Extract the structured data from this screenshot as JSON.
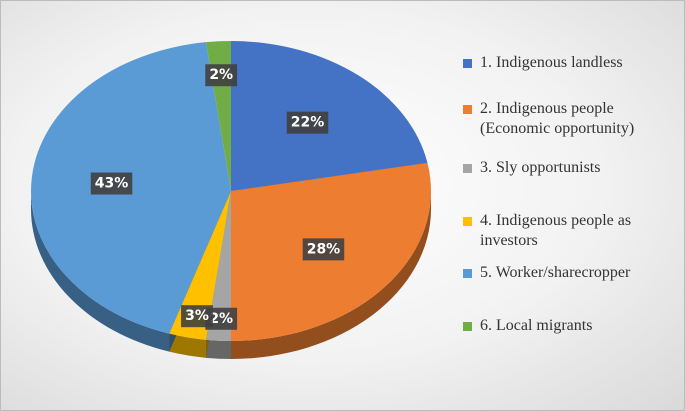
{
  "chart_data": {
    "type": "pie",
    "categories": [
      "1. Indigenous landless",
      "2. Indigenous people (Economic opportunity)",
      "3. Sly opportunists",
      "4. Indigenous people as investors",
      "5. Worker/sharecropper",
      "6. Local migrants"
    ],
    "values": [
      22,
      28,
      2,
      3,
      43,
      2
    ],
    "value_labels": [
      "22%",
      "28%",
      "2%",
      "3%",
      "43%",
      "2%"
    ],
    "colors": [
      "#4472c4",
      "#ed7d31",
      "#a5a5a5",
      "#ffc000",
      "#5b9bd5",
      "#70ad47"
    ],
    "legend": "right"
  }
}
